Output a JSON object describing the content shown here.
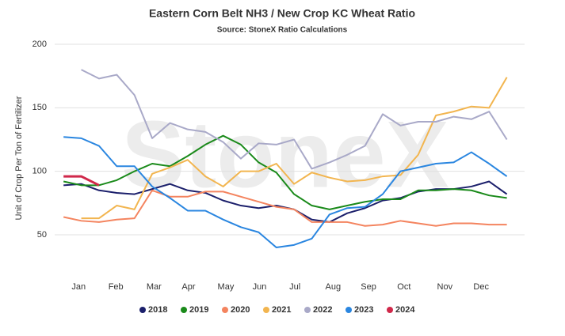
{
  "chart_data": {
    "type": "line",
    "title": "Eastern Corn Belt NH3 / New Crop KC Wheat Ratio",
    "subtitle": "Source: StoneX Ratio Calculations",
    "y_label": "Unit of Crop Per Ton of Fertilizer",
    "watermark": "StoneX",
    "x": [
      1,
      3,
      5,
      7,
      9,
      11,
      13,
      15,
      17,
      19,
      21,
      23,
      25,
      27,
      29,
      31,
      33,
      35,
      37,
      39,
      41,
      43,
      45,
      47,
      49,
      51
    ],
    "xlim": [
      0,
      53
    ],
    "xticks": [
      {
        "value": 2.7,
        "label": "Jan"
      },
      {
        "value": 6.9,
        "label": "Feb"
      },
      {
        "value": 11.2,
        "label": "Mar"
      },
      {
        "value": 15.1,
        "label": "Apr"
      },
      {
        "value": 19.3,
        "label": "May"
      },
      {
        "value": 23.1,
        "label": "Jun"
      },
      {
        "value": 27.1,
        "label": "Jul"
      },
      {
        "value": 31.4,
        "label": "Aug"
      },
      {
        "value": 35.4,
        "label": "Sep"
      },
      {
        "value": 39.4,
        "label": "Oct"
      },
      {
        "value": 44.0,
        "label": "Nov"
      },
      {
        "value": 48.1,
        "label": "Dec"
      }
    ],
    "ylim": [
      17,
      200
    ],
    "yticks": [
      50,
      100,
      150,
      200
    ],
    "grid": true,
    "legend": "bottom",
    "series": [
      {
        "name": "2018",
        "color": "#1b1f6b",
        "values": [
          89,
          90,
          85,
          83,
          82,
          86,
          90,
          85,
          83,
          77,
          73,
          71,
          73,
          70,
          62,
          60,
          67,
          71,
          77,
          79,
          84,
          86,
          86,
          88,
          92,
          82
        ]
      },
      {
        "name": "2019",
        "color": "#1a8a1a",
        "values": [
          92,
          89,
          89,
          93,
          100,
          106,
          104,
          112,
          121,
          128,
          121,
          107,
          99,
          82,
          73,
          70,
          73,
          76,
          78,
          78,
          85,
          85,
          86,
          85,
          81,
          79
        ]
      },
      {
        "name": "2020",
        "color": "#f4845f",
        "values": [
          64,
          61,
          60,
          62,
          63,
          85,
          80,
          80,
          84,
          84,
          80,
          76,
          72,
          70,
          60,
          60,
          60,
          57,
          58,
          61,
          59,
          57,
          59,
          59,
          58,
          58
        ]
      },
      {
        "name": "2021",
        "color": "#f2b54f",
        "values": [
          null,
          63,
          63,
          73,
          70,
          98,
          103,
          109,
          96,
          88,
          100,
          100,
          106,
          90,
          99,
          95,
          92,
          93,
          96,
          97,
          113,
          144,
          147,
          151,
          150,
          174
        ]
      },
      {
        "name": "2022",
        "color": "#a9a9c8",
        "values": [
          null,
          180,
          173,
          176,
          160,
          126,
          138,
          133,
          131,
          123,
          110,
          122,
          121,
          125,
          102,
          107,
          113,
          120,
          145,
          136,
          139,
          139,
          143,
          141,
          147,
          125
        ]
      },
      {
        "name": "2023",
        "color": "#2a86e0",
        "values": [
          127,
          126,
          120,
          104,
          104,
          88,
          79,
          69,
          69,
          62,
          56,
          52,
          40,
          42,
          47,
          66,
          71,
          72,
          82,
          100,
          103,
          106,
          107,
          115,
          106,
          96
        ]
      },
      {
        "name": "2024",
        "color": "#d0284a",
        "values": [
          96,
          96,
          89,
          null,
          null,
          null,
          null,
          null,
          null,
          null,
          null,
          null,
          null,
          null,
          null,
          null,
          null,
          null,
          null,
          null,
          null,
          null,
          null,
          null,
          null,
          null
        ]
      }
    ]
  }
}
